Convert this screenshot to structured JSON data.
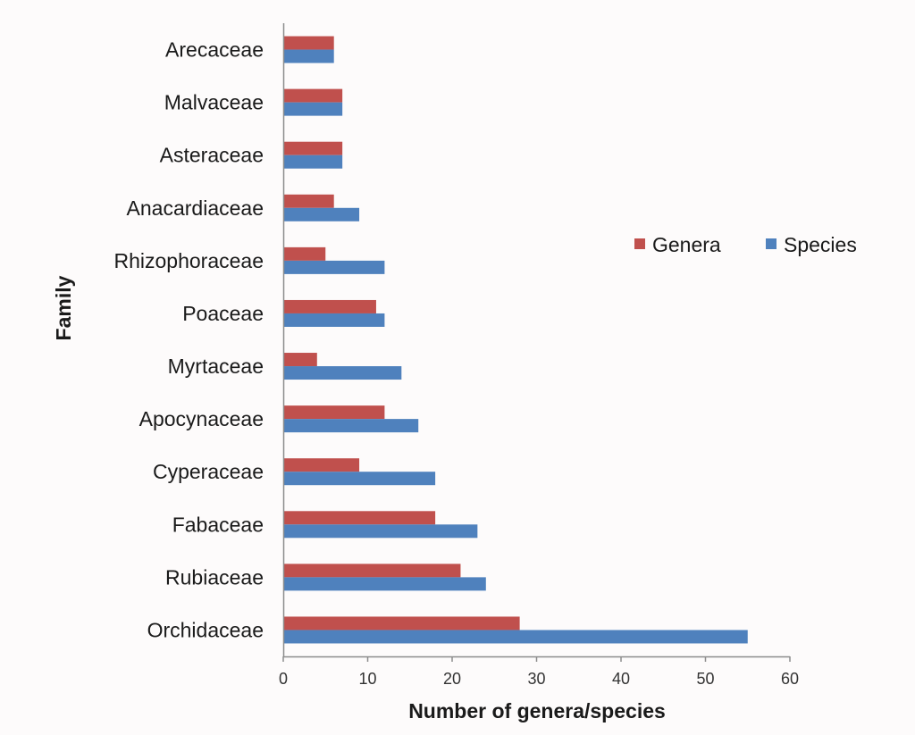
{
  "chart_data": {
    "type": "bar",
    "orientation": "horizontal",
    "categories": [
      "Orchidaceae",
      "Rubiaceae",
      "Fabaceae",
      "Cyperaceae",
      "Apocynaceae",
      "Myrtaceae",
      "Poaceae",
      "Rhizophoraceae",
      "Anacardiaceae",
      "Asteraceae",
      "Malvaceae",
      "Arecaceae"
    ],
    "series": [
      {
        "name": "Genera",
        "color": "#c0504d",
        "values": [
          28,
          21,
          18,
          9,
          12,
          4,
          11,
          5,
          6,
          7,
          7,
          6
        ]
      },
      {
        "name": "Species",
        "color": "#4f81bd",
        "values": [
          55,
          24,
          23,
          18,
          16,
          14,
          12,
          12,
          9,
          7,
          7,
          6
        ]
      }
    ],
    "xlabel": "Number of genera/species",
    "ylabel": "Family",
    "xlim": [
      0,
      60
    ],
    "xticks": [
      0,
      10,
      20,
      30,
      40,
      50,
      60
    ],
    "grid": false,
    "legend_position": "right"
  }
}
